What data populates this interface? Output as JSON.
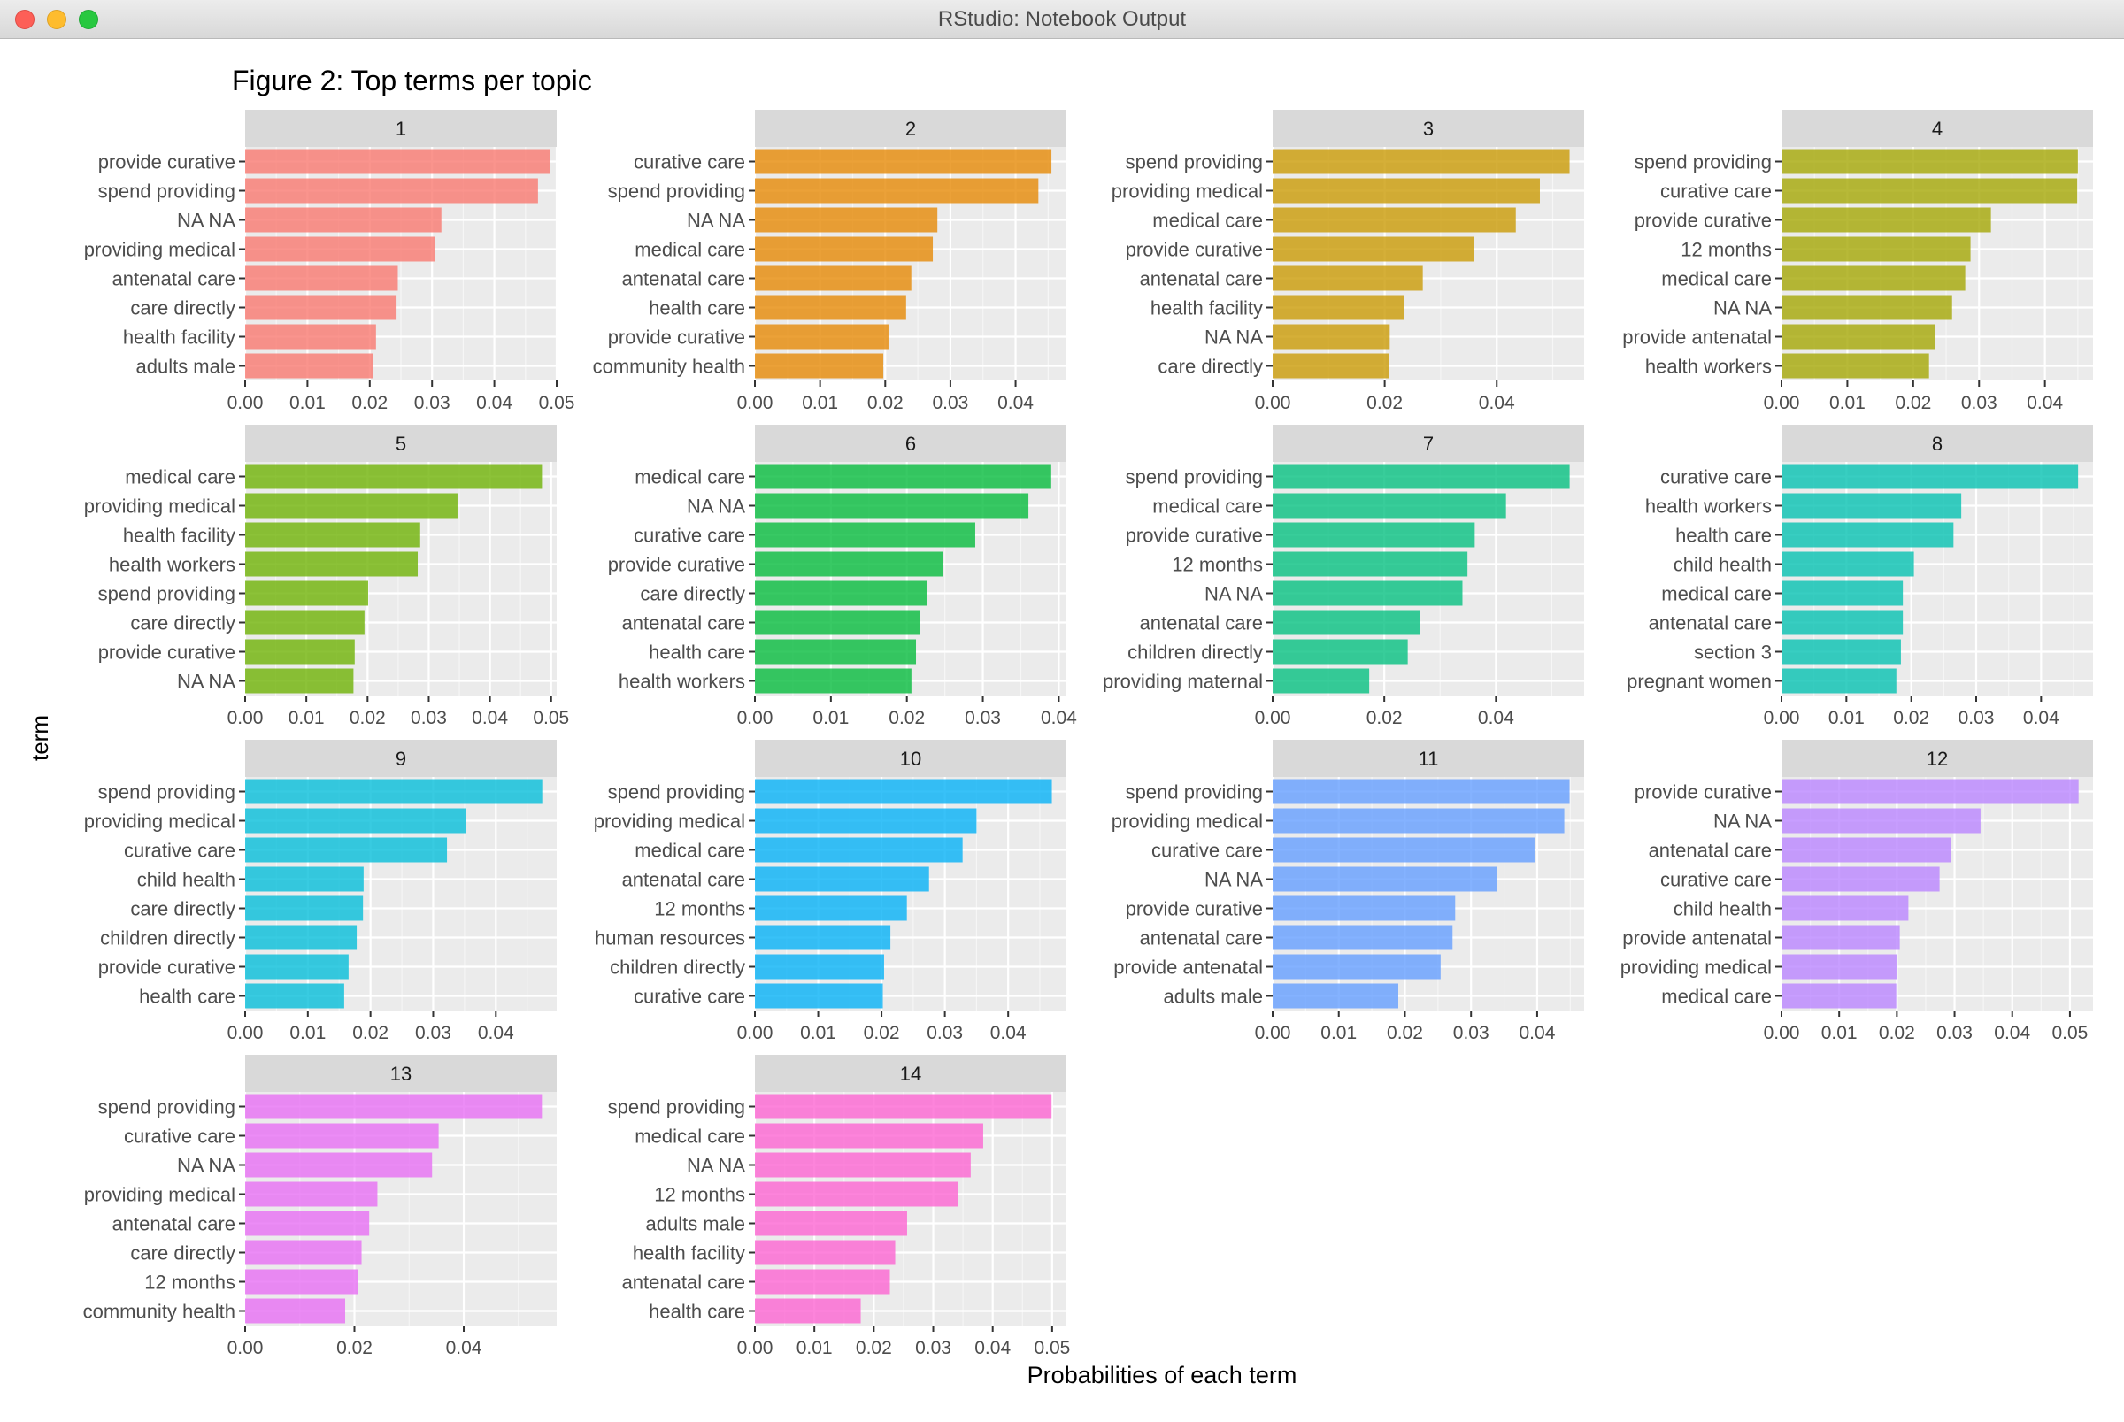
{
  "window": {
    "title": "RStudio: Notebook Output"
  },
  "figure": {
    "title": "Figure 2: Top terms per topic",
    "xlabel": "Probabilities of each term",
    "ylabel": "term"
  },
  "colors": {
    "topic_fill": [
      "#F8766D",
      "#E58700",
      "#C99800",
      "#A3A500",
      "#6BB100",
      "#00BA38",
      "#00BF7D",
      "#00C0AF",
      "#00BCD8",
      "#00B0F6",
      "#619CFF",
      "#B983FF",
      "#E76BF3",
      "#FD61D1"
    ],
    "panel_bg": "#EBEBEB",
    "strip_bg": "#D9D9D9",
    "grid": "#FFFFFF"
  },
  "chart_data": {
    "type": "bar",
    "orientation": "horizontal",
    "facet_layout": "4 columns, free scales",
    "panels": [
      {
        "topic": "1",
        "terms": [
          "provide curative",
          "spend providing",
          "NA NA",
          "providing medical",
          "antenatal care",
          "care directly",
          "health facility",
          "adults male"
        ],
        "values": [
          0.049,
          0.047,
          0.0315,
          0.0305,
          0.0245,
          0.0243,
          0.021,
          0.0205
        ],
        "xticks": [
          0,
          0.01,
          0.02,
          0.03,
          0.04,
          0.05
        ],
        "xtick_labels": [
          "0.00",
          "0.01",
          "0.02",
          "0.03",
          "0.04",
          "0.05"
        ],
        "xlim": [
          0,
          0.05
        ]
      },
      {
        "topic": "2",
        "terms": [
          "curative care",
          "spend providing",
          "NA NA",
          "medical care",
          "antenatal care",
          "health care",
          "provide curative",
          "community health"
        ],
        "values": [
          0.0455,
          0.0435,
          0.028,
          0.0273,
          0.024,
          0.0232,
          0.0205,
          0.0197
        ],
        "xticks": [
          0,
          0.01,
          0.02,
          0.03,
          0.04
        ],
        "xtick_labels": [
          "0.00",
          "0.01",
          "0.02",
          "0.03",
          "0.04"
        ],
        "xlim": [
          0,
          0.0478
        ]
      },
      {
        "topic": "3",
        "terms": [
          "spend providing",
          "providing medical",
          "medical care",
          "provide curative",
          "antenatal care",
          "health facility",
          "NA NA",
          "care directly"
        ],
        "values": [
          0.053,
          0.0477,
          0.0434,
          0.0359,
          0.0268,
          0.0235,
          0.0209,
          0.0208
        ],
        "xticks": [
          0,
          0.02,
          0.04
        ],
        "xtick_labels": [
          "0.00",
          "0.02",
          "0.04"
        ],
        "xlim": [
          0,
          0.0556
        ]
      },
      {
        "topic": "4",
        "terms": [
          "spend providing",
          "curative care",
          "provide curative",
          "12 months",
          "medical care",
          "NA NA",
          "provide antenatal",
          "health workers"
        ],
        "values": [
          0.045,
          0.0449,
          0.0318,
          0.0287,
          0.0279,
          0.0259,
          0.0233,
          0.0224
        ],
        "xticks": [
          0,
          0.01,
          0.02,
          0.03,
          0.04
        ],
        "xtick_labels": [
          "0.00",
          "0.01",
          "0.02",
          "0.03",
          "0.04"
        ],
        "xlim": [
          0,
          0.0473
        ]
      },
      {
        "topic": "5",
        "terms": [
          "medical care",
          "providing medical",
          "health facility",
          "health workers",
          "spend providing",
          "care directly",
          "provide curative",
          "NA NA"
        ],
        "values": [
          0.0485,
          0.0347,
          0.0286,
          0.0282,
          0.0201,
          0.0195,
          0.0179,
          0.0177
        ],
        "xticks": [
          0,
          0.01,
          0.02,
          0.03,
          0.04,
          0.05
        ],
        "xtick_labels": [
          "0.00",
          "0.01",
          "0.02",
          "0.03",
          "0.04",
          "0.05"
        ],
        "xlim": [
          0,
          0.0509
        ]
      },
      {
        "topic": "6",
        "terms": [
          "medical care",
          "NA NA",
          "curative care",
          "provide curative",
          "care directly",
          "antenatal care",
          "health care",
          "health workers"
        ],
        "values": [
          0.039,
          0.036,
          0.029,
          0.0248,
          0.0227,
          0.0217,
          0.0212,
          0.0206
        ],
        "xticks": [
          0,
          0.01,
          0.02,
          0.03,
          0.04
        ],
        "xtick_labels": [
          "0.00",
          "0.01",
          "0.02",
          "0.03",
          "0.04"
        ],
        "xlim": [
          0,
          0.041
        ]
      },
      {
        "topic": "7",
        "terms": [
          "spend providing",
          "medical care",
          "provide curative",
          "12 months",
          "NA NA",
          "antenatal care",
          "children directly",
          "providing maternal"
        ],
        "values": [
          0.0532,
          0.0418,
          0.0362,
          0.0349,
          0.034,
          0.0264,
          0.0242,
          0.0173
        ],
        "xticks": [
          0,
          0.02,
          0.04
        ],
        "xtick_labels": [
          "0.00",
          "0.02",
          "0.04"
        ],
        "xlim": [
          0,
          0.0558
        ]
      },
      {
        "topic": "8",
        "terms": [
          "curative care",
          "health workers",
          "health care",
          "child health",
          "medical care",
          "antenatal care",
          "section 3",
          "pregnant women"
        ],
        "values": [
          0.0457,
          0.0277,
          0.0265,
          0.0204,
          0.0187,
          0.0187,
          0.0184,
          0.0177
        ],
        "xticks": [
          0,
          0.01,
          0.02,
          0.03,
          0.04
        ],
        "xtick_labels": [
          "0.00",
          "0.01",
          "0.02",
          "0.03",
          "0.04"
        ],
        "xlim": [
          0,
          0.048
        ]
      },
      {
        "topic": "9",
        "terms": [
          "spend providing",
          "providing medical",
          "curative care",
          "child health",
          "care directly",
          "children directly",
          "provide curative",
          "health care"
        ],
        "values": [
          0.0474,
          0.0352,
          0.0322,
          0.0189,
          0.0188,
          0.0178,
          0.0165,
          0.0158
        ],
        "xticks": [
          0,
          0.01,
          0.02,
          0.03,
          0.04
        ],
        "xtick_labels": [
          "0.00",
          "0.01",
          "0.02",
          "0.03",
          "0.04"
        ],
        "xlim": [
          0,
          0.0497
        ]
      },
      {
        "topic": "10",
        "terms": [
          "spend providing",
          "providing medical",
          "medical care",
          "antenatal care",
          "12 months",
          "human resources",
          "children directly",
          "curative care"
        ],
        "values": [
          0.0469,
          0.035,
          0.0328,
          0.0275,
          0.024,
          0.0214,
          0.0204,
          0.0202
        ],
        "xticks": [
          0,
          0.01,
          0.02,
          0.03,
          0.04
        ],
        "xtick_labels": [
          "0.00",
          "0.01",
          "0.02",
          "0.03",
          "0.04"
        ],
        "xlim": [
          0,
          0.0492
        ]
      },
      {
        "topic": "11",
        "terms": [
          "spend providing",
          "providing medical",
          "curative care",
          "NA NA",
          "provide curative",
          "antenatal care",
          "provide antenatal",
          "adults male"
        ],
        "values": [
          0.0449,
          0.0441,
          0.0396,
          0.0339,
          0.0276,
          0.0272,
          0.0254,
          0.019
        ],
        "xticks": [
          0,
          0.01,
          0.02,
          0.03,
          0.04
        ],
        "xtick_labels": [
          "0.00",
          "0.01",
          "0.02",
          "0.03",
          "0.04"
        ],
        "xlim": [
          0,
          0.0471
        ]
      },
      {
        "topic": "12",
        "terms": [
          "provide curative",
          "NA NA",
          "antenatal care",
          "curative care",
          "child health",
          "provide antenatal",
          "providing medical",
          "medical care"
        ],
        "values": [
          0.0515,
          0.0345,
          0.0293,
          0.0274,
          0.022,
          0.0205,
          0.02,
          0.0199
        ],
        "xticks": [
          0,
          0.01,
          0.02,
          0.03,
          0.04,
          0.05
        ],
        "xtick_labels": [
          "0.00",
          "0.01",
          "0.02",
          "0.03",
          "0.04",
          "0.05"
        ],
        "xlim": [
          0,
          0.054
        ]
      },
      {
        "topic": "13",
        "terms": [
          "spend providing",
          "curative care",
          "NA NA",
          "providing medical",
          "antenatal care",
          "care directly",
          "12 months",
          "community health"
        ],
        "values": [
          0.0543,
          0.0354,
          0.0342,
          0.0242,
          0.0227,
          0.0213,
          0.0206,
          0.0183
        ],
        "xticks": [
          0,
          0.02,
          0.04
        ],
        "xtick_labels": [
          "0.00",
          "0.02",
          "0.04"
        ],
        "xlim": [
          0,
          0.057
        ]
      },
      {
        "topic": "14",
        "terms": [
          "spend providing",
          "medical care",
          "NA NA",
          "12 months",
          "adults male",
          "health facility",
          "antenatal care",
          "health care"
        ],
        "values": [
          0.0499,
          0.0384,
          0.0363,
          0.0342,
          0.0256,
          0.0236,
          0.0227,
          0.0178
        ],
        "xticks": [
          0,
          0.01,
          0.02,
          0.03,
          0.04,
          0.05
        ],
        "xtick_labels": [
          "0.00",
          "0.01",
          "0.02",
          "0.03",
          "0.04",
          "0.05"
        ],
        "xlim": [
          0,
          0.0524
        ]
      }
    ]
  }
}
